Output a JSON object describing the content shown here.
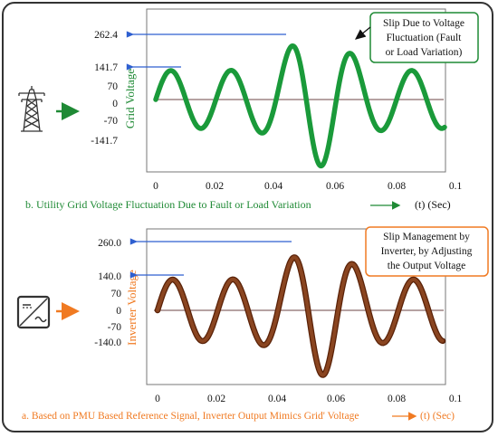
{
  "colors": {
    "grid_wave": "#1a9a3a",
    "grid_wave_edge": "#0d6b27",
    "grid_label": "#1f8a35",
    "inverter_wave": "#7a3513",
    "inverter_wave_edge": "#5a2208",
    "inverter_label": "#f07a22",
    "arrow_blue": "#2e5fd0",
    "baseline": "#8a6b6b",
    "callout_grid_border": "#1f8a35",
    "callout_inv_border": "#f07a22",
    "text_dark": "#111111"
  },
  "panel_top": {
    "y_axis_label": "Grid Voltage",
    "y_ticks": [
      "262.4",
      "141.7",
      "70",
      "0",
      "-70",
      "-141.7"
    ],
    "x_ticks": [
      "0",
      "0.02",
      "0.04",
      "0.06",
      "0.08",
      "0.1"
    ],
    "x_unit": "(t) (Sec)",
    "caption": "b. Utility  Grid Voltage Fluctuation Due to Fault or Load Variation",
    "callout": [
      "Slip Due to Voltage",
      "Fluctuation (Fault",
      "or Load Variation)"
    ],
    "icon": "transmission-tower-icon"
  },
  "panel_bottom": {
    "y_axis_label": "Inverter Voltage",
    "y_ticks": [
      "260.0",
      "140.0",
      "70",
      "0",
      "-70",
      "-140.0"
    ],
    "x_ticks": [
      "0",
      "0.02",
      "0.04",
      "0.06",
      "0.08",
      "0.1"
    ],
    "x_unit": "(t) (Sec)",
    "caption": "a. Based on PMU Based Reference Signal, Inverter Output Mimics Grid' Voltage",
    "callout": [
      "Slip Management by",
      "Inverter, by Adjusting",
      "the Output Voltage"
    ],
    "icon": "inverter-icon"
  }
}
